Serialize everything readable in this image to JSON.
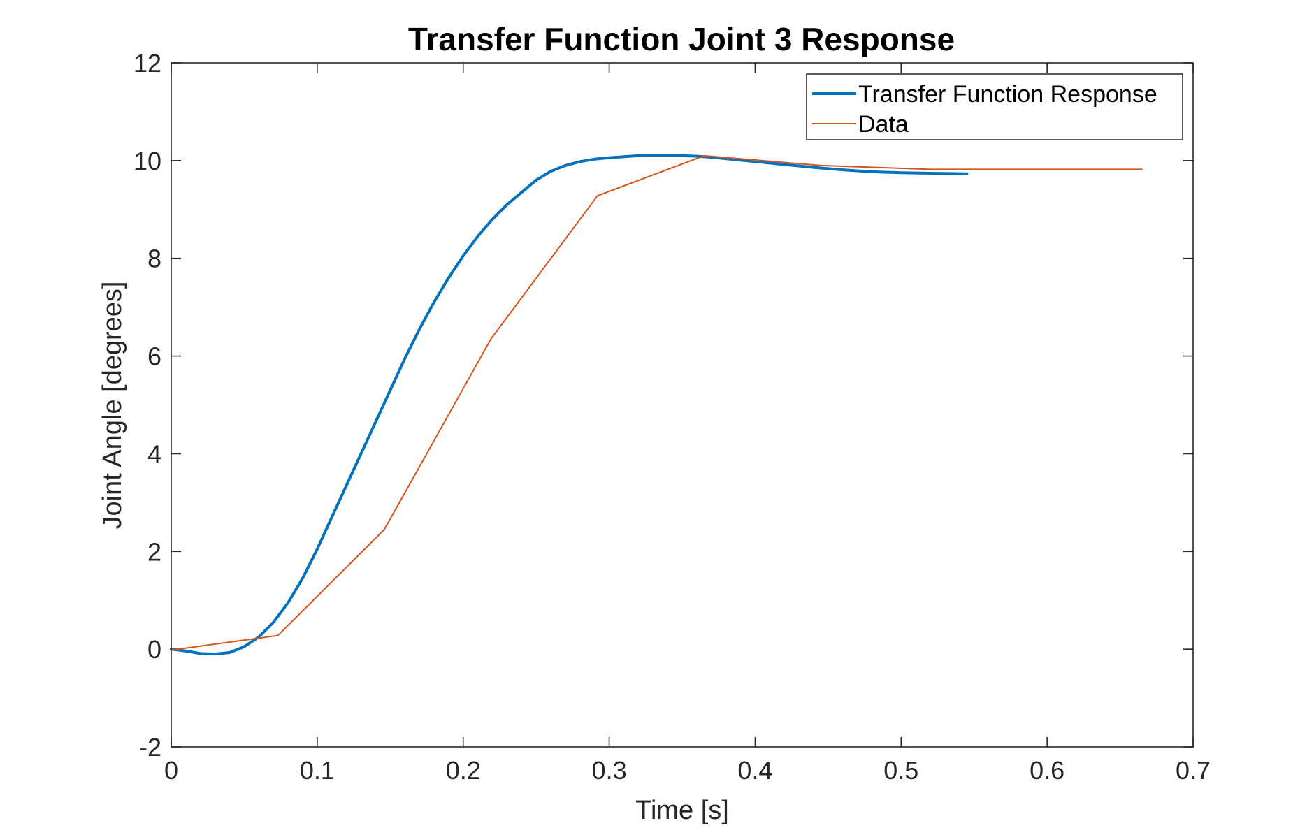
{
  "chart_data": {
    "type": "line",
    "title": "Transfer Function Joint 3 Response",
    "xlabel": "Time [s]",
    "ylabel": "Joint Angle [degrees]",
    "xlim": [
      0,
      0.7
    ],
    "ylim": [
      -2,
      12
    ],
    "xticks": [
      0,
      0.1,
      0.2,
      0.3,
      0.4,
      0.5,
      0.6,
      0.7
    ],
    "xtick_labels": [
      "0",
      "0.1",
      "0.2",
      "0.3",
      "0.4",
      "0.5",
      "0.6",
      "0.7"
    ],
    "yticks": [
      -2,
      0,
      2,
      4,
      6,
      8,
      10,
      12
    ],
    "ytick_labels": [
      "-2",
      "0",
      "2",
      "4",
      "6",
      "8",
      "10",
      "12"
    ],
    "grid": false,
    "legend_position": "top-right",
    "series": [
      {
        "name": "Transfer Function Response",
        "color": "#0072BD",
        "x": [
          0,
          0.01,
          0.02,
          0.03,
          0.04,
          0.05,
          0.06,
          0.07,
          0.08,
          0.09,
          0.1,
          0.11,
          0.12,
          0.13,
          0.14,
          0.15,
          0.16,
          0.17,
          0.18,
          0.19,
          0.2,
          0.21,
          0.22,
          0.23,
          0.24,
          0.25,
          0.26,
          0.27,
          0.28,
          0.29,
          0.3,
          0.31,
          0.32,
          0.33,
          0.34,
          0.35,
          0.36,
          0.37,
          0.38,
          0.39,
          0.4,
          0.42,
          0.44,
          0.46,
          0.48,
          0.5,
          0.52,
          0.545
        ],
        "y": [
          0.0,
          -0.04,
          -0.09,
          -0.1,
          -0.07,
          0.05,
          0.25,
          0.55,
          0.95,
          1.45,
          2.05,
          2.7,
          3.35,
          4.0,
          4.65,
          5.3,
          5.95,
          6.55,
          7.1,
          7.6,
          8.05,
          8.45,
          8.8,
          9.1,
          9.35,
          9.6,
          9.78,
          9.9,
          9.98,
          10.03,
          10.06,
          10.08,
          10.1,
          10.1,
          10.1,
          10.1,
          10.09,
          10.07,
          10.04,
          10.01,
          9.98,
          9.92,
          9.86,
          9.81,
          9.77,
          9.75,
          9.74,
          9.73
        ]
      },
      {
        "name": "Data",
        "color": "#D95319",
        "x": [
          0,
          0.073,
          0.146,
          0.219,
          0.292,
          0.365,
          0.445,
          0.52,
          0.665
        ],
        "y": [
          -0.02,
          0.28,
          2.45,
          6.35,
          9.28,
          10.1,
          9.9,
          9.82,
          9.82
        ]
      }
    ]
  }
}
